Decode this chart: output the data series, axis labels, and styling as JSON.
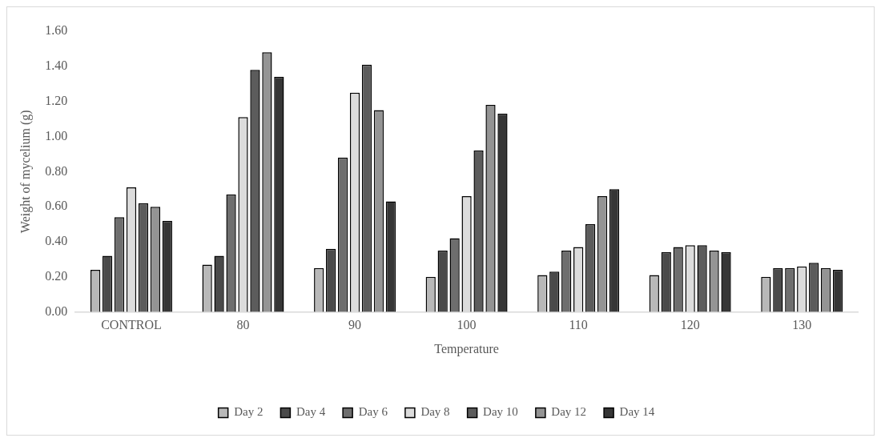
{
  "chart_data": {
    "type": "bar",
    "xlabel": "Temperature",
    "ylabel": "Weight of mycelium (g)",
    "categories": [
      "CONTROL",
      "80",
      "90",
      "100",
      "110",
      "120",
      "130"
    ],
    "series": [
      {
        "name": "Day 2",
        "color": "#b8b8b8",
        "values": [
          0.24,
          0.27,
          0.25,
          0.2,
          0.21,
          0.21,
          0.2
        ]
      },
      {
        "name": "Day 4",
        "color": "#4a4a4a",
        "values": [
          0.32,
          0.32,
          0.36,
          0.35,
          0.23,
          0.34,
          0.25
        ]
      },
      {
        "name": "Day 6",
        "color": "#6e6e6e",
        "values": [
          0.54,
          0.67,
          0.88,
          0.42,
          0.35,
          0.37,
          0.25
        ]
      },
      {
        "name": "Day 8",
        "color": "#dcdcdc",
        "values": [
          0.71,
          1.11,
          1.25,
          0.66,
          0.37,
          0.38,
          0.26
        ]
      },
      {
        "name": "Day 10",
        "color": "#5c5c5c",
        "values": [
          0.62,
          1.38,
          1.41,
          0.92,
          0.5,
          0.38,
          0.28
        ]
      },
      {
        "name": "Day 12",
        "color": "#949494",
        "values": [
          0.6,
          1.48,
          1.15,
          1.18,
          0.66,
          0.35,
          0.25
        ]
      },
      {
        "name": "Day 14",
        "color": "#363636",
        "values": [
          0.52,
          1.34,
          0.63,
          1.13,
          0.7,
          0.34,
          0.24
        ]
      }
    ],
    "ylim": [
      0,
      1.6
    ],
    "yticks": [
      {
        "value": 0,
        "label": "0.00"
      },
      {
        "value": 0.2,
        "label": "0.20"
      },
      {
        "value": 0.4,
        "label": "0.40"
      },
      {
        "value": 0.6,
        "label": "0.60"
      },
      {
        "value": 0.8,
        "label": "0.80"
      },
      {
        "value": 1,
        "label": "1.00"
      },
      {
        "value": 1.2,
        "label": "1.20"
      },
      {
        "value": 1.4,
        "label": "1.40"
      },
      {
        "value": 1.6,
        "label": "1.60"
      }
    ],
    "grid": false,
    "legend": "bottom"
  }
}
